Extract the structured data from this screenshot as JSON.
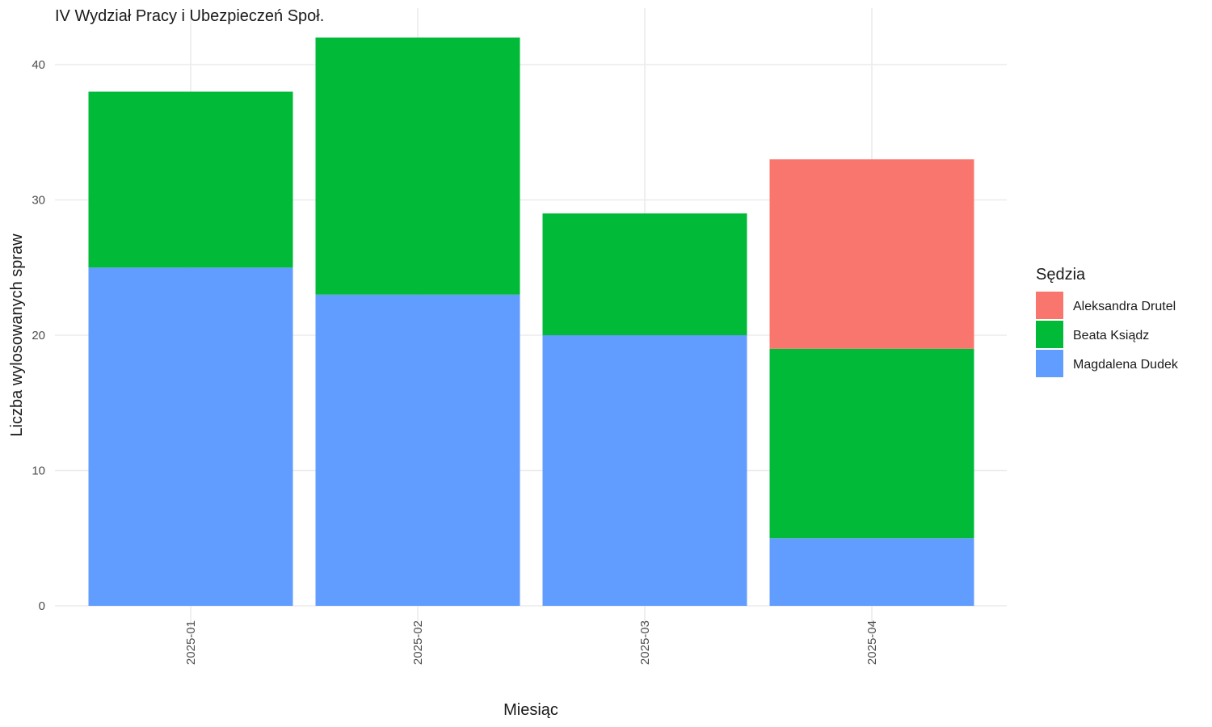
{
  "chart_data": {
    "type": "bar",
    "stacked": true,
    "title": "IV Wydział Pracy i Ubezpieczeń Społ.",
    "xlabel": "Miesiąc",
    "ylabel": "Liczba wylosowanych spraw",
    "categories": [
      "2025-01",
      "2025-02",
      "2025-03",
      "2025-04"
    ],
    "ylim": [
      0,
      43
    ],
    "yticks": [
      0,
      10,
      20,
      30,
      40
    ],
    "grid": true,
    "series": [
      {
        "name": "Magdalena Dudek",
        "color": "#619CFF",
        "values": [
          25,
          23,
          20,
          5
        ]
      },
      {
        "name": "Beata Ksiądz",
        "color": "#00BA38",
        "values": [
          13,
          19,
          9,
          14
        ]
      },
      {
        "name": "Aleksandra Drutel",
        "color": "#F8766D",
        "values": [
          0,
          0,
          0,
          14
        ]
      }
    ],
    "legend": {
      "title": "Sędzia",
      "position": "right",
      "order": [
        "Aleksandra Drutel",
        "Beata Ksiądz",
        "Magdalena Dudek"
      ]
    }
  }
}
